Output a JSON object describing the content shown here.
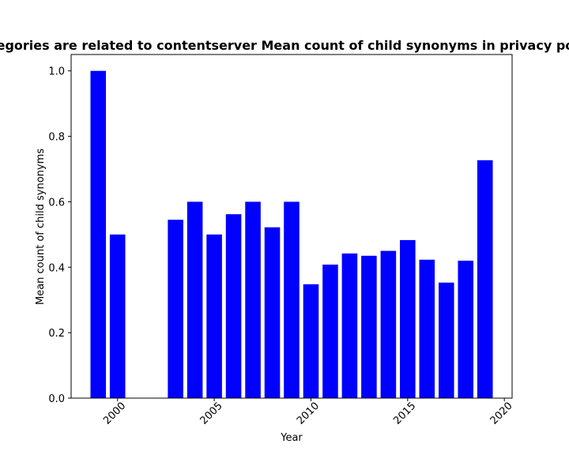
{
  "chart_data": {
    "type": "bar",
    "title": "Categories are related to contentserver Mean count of child synonyms in privacy policies",
    "xlabel": "Year",
    "ylabel": "Mean count of child synonyms",
    "x": [
      1999,
      2000,
      2003,
      2004,
      2005,
      2006,
      2007,
      2008,
      2009,
      2010,
      2011,
      2012,
      2013,
      2014,
      2015,
      2016,
      2017,
      2018,
      2019
    ],
    "values": [
      1.0,
      0.5,
      0.545,
      0.6,
      0.5,
      0.562,
      0.6,
      0.522,
      0.6,
      0.348,
      0.408,
      0.442,
      0.435,
      0.45,
      0.483,
      0.423,
      0.353,
      0.42,
      0.727
    ],
    "xlim": [
      1997.6,
      2020.4
    ],
    "ylim": [
      0,
      1.05
    ],
    "xticks": [
      2000,
      2005,
      2010,
      2015,
      2020
    ],
    "yticks": [
      0.0,
      0.2,
      0.4,
      0.6,
      0.8,
      1.0
    ],
    "bar_color": "#0000ff",
    "grid": false,
    "legend": "none"
  }
}
